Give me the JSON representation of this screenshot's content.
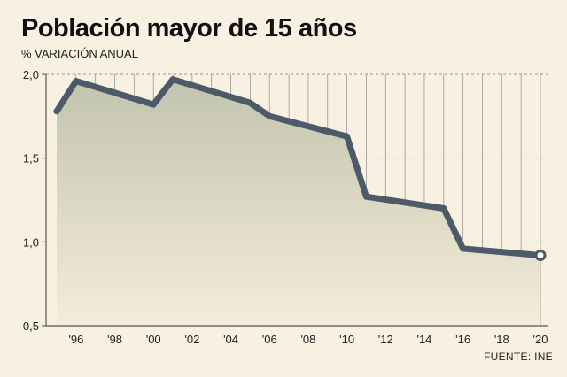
{
  "chart_data": {
    "type": "area",
    "title": "Población mayor de 15 años",
    "subtitle": "% VARIACIÓN ANUAL",
    "source": "FUENTE: INE",
    "x": [
      1995,
      1996,
      2000,
      2001,
      2005,
      2006,
      2010,
      2011,
      2015,
      2016,
      2020
    ],
    "values": [
      1.78,
      1.96,
      1.82,
      1.97,
      1.83,
      1.75,
      1.63,
      1.27,
      1.2,
      0.96,
      0.92
    ],
    "xlim": [
      1995,
      2020
    ],
    "ylim": [
      0.5,
      2.0
    ],
    "yticks": [
      0.5,
      1.0,
      1.5,
      2.0
    ],
    "ytick_labels": [
      "0,5",
      "1,0",
      "1,5",
      "2,0"
    ],
    "xticks": [
      1996,
      1998,
      2000,
      2002,
      2004,
      2006,
      2008,
      2010,
      2012,
      2014,
      2016,
      2018,
      2020
    ],
    "xtick_labels": [
      "'96",
      "'98",
      "'00",
      "'02",
      "'04",
      "'06",
      "'08",
      "'10",
      "'12",
      "'14",
      "'16",
      "'18",
      "'20"
    ],
    "grid": true,
    "colors": {
      "line": "#4d5b69",
      "fill_top": "#c2c4ae",
      "fill_bottom": "#f3ecd9",
      "background": "#f8f0e0",
      "grid": "#999999"
    }
  }
}
